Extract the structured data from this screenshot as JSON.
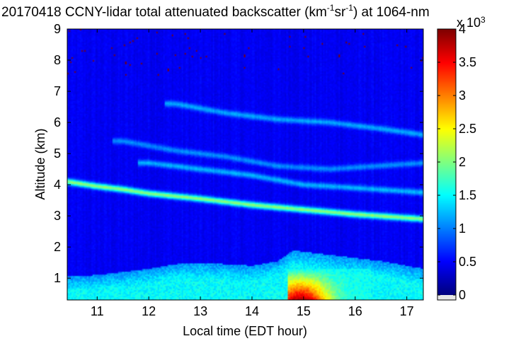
{
  "chart_data": {
    "type": "heatmap",
    "title": "20170418 CCNY-lidar total attenuated backscatter (km",
    "title_sup1": "-1",
    "title_mid": "sr",
    "title_sup2": "-1",
    "title_end": ") at 1064-nm",
    "xlabel": "Local time (EDT hour)",
    "ylabel": "Altitude (km)",
    "xlim": [
      10.42,
      17.32
    ],
    "ylim": [
      0.3,
      9.0
    ],
    "x_ticks": [
      11,
      12,
      13,
      14,
      15,
      16,
      17
    ],
    "y_ticks": [
      1,
      2,
      3,
      4,
      5,
      6,
      7,
      8,
      9
    ],
    "colorbar": {
      "range": [
        0,
        4
      ],
      "ticks": [
        "0",
        "0.5",
        "1",
        "1.5",
        "2",
        "2.5",
        "3",
        "3.5",
        "4"
      ],
      "tick_values": [
        0,
        0.5,
        1,
        1.5,
        2,
        2.5,
        3,
        3.5,
        4
      ],
      "multiplier_prefix": "x 10",
      "multiplier_exp": "3",
      "colormap": "jet",
      "underflow_color": "#e6e6e6"
    },
    "background_level": 0.45,
    "features": [
      {
        "name": "elevated aerosol layer",
        "x": [
          10.42,
          11.0,
          11.5,
          12.0,
          13.0,
          14.0,
          15.0,
          16.0,
          17.32
        ],
        "y": [
          4.1,
          3.95,
          3.85,
          3.72,
          3.55,
          3.35,
          3.2,
          3.05,
          2.9
        ],
        "value": 1.6
      },
      {
        "name": "upper aerosol layer",
        "x": [
          12.0,
          13.0,
          14.0,
          15.0,
          16.0,
          17.32
        ],
        "y": [
          4.7,
          4.5,
          4.3,
          4.0,
          3.9,
          3.75
        ],
        "value": 0.75
      },
      {
        "name": "cirrus band",
        "x": [
          12.5,
          13.5,
          14.5,
          15.5,
          16.5,
          17.32
        ],
        "y": [
          6.6,
          6.3,
          6.1,
          6.0,
          5.8,
          5.6
        ],
        "value": 0.7
      },
      {
        "name": "mid-level haze",
        "x": [
          11.5,
          12.5,
          13.5,
          14.5,
          15.5,
          17.32
        ],
        "y": [
          5.4,
          5.1,
          4.9,
          4.6,
          4.5,
          4.7
        ],
        "value": 0.6
      }
    ],
    "boundary_layer": {
      "x": [
        10.42,
        11.0,
        12.0,
        12.5,
        13.0,
        13.5,
        14.0,
        14.5,
        14.8,
        15.0,
        15.5,
        16.0,
        16.5,
        17.0,
        17.32
      ],
      "top_km": [
        1.05,
        1.1,
        1.3,
        1.45,
        1.5,
        1.45,
        1.4,
        1.55,
        1.9,
        1.85,
        1.75,
        1.65,
        1.55,
        1.4,
        1.3
      ],
      "value": 1.5
    },
    "dense_aerosol_region": {
      "x": [
        14.7,
        16.3
      ],
      "y": [
        0.3,
        1.3
      ],
      "peak_value": 3.9
    },
    "noise_region_above_km": 7.5
  }
}
